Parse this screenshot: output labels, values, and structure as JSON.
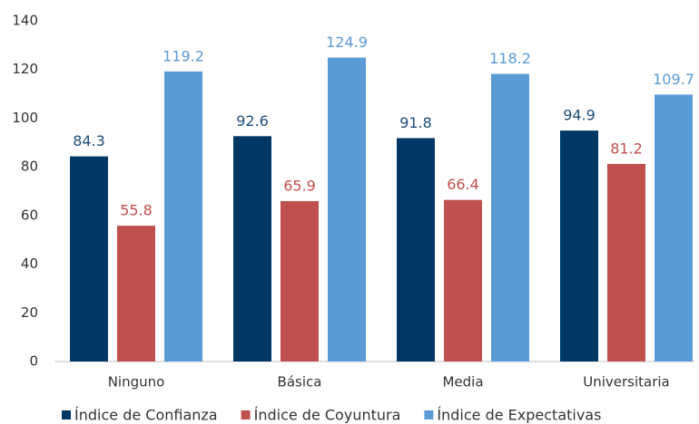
{
  "chart_data": {
    "type": "bar",
    "categories": [
      "Ninguno",
      "Básica",
      "Media",
      "Universitaria"
    ],
    "series": [
      {
        "name": "Índice de Confianza",
        "color": "#003865",
        "values": [
          84.3,
          92.6,
          91.8,
          94.9
        ]
      },
      {
        "name": "Índice de Coyuntura",
        "color": "#c0504d",
        "values": [
          55.8,
          65.9,
          66.4,
          81.2
        ]
      },
      {
        "name": "Índice de Expectativas",
        "color": "#5b9bd5",
        "values": [
          119.2,
          124.9,
          118.2,
          109.7
        ]
      }
    ],
    "ylim": [
      0,
      140
    ],
    "yticks": [
      0,
      20,
      40,
      60,
      80,
      100,
      120,
      140
    ],
    "legend": "bottom"
  }
}
